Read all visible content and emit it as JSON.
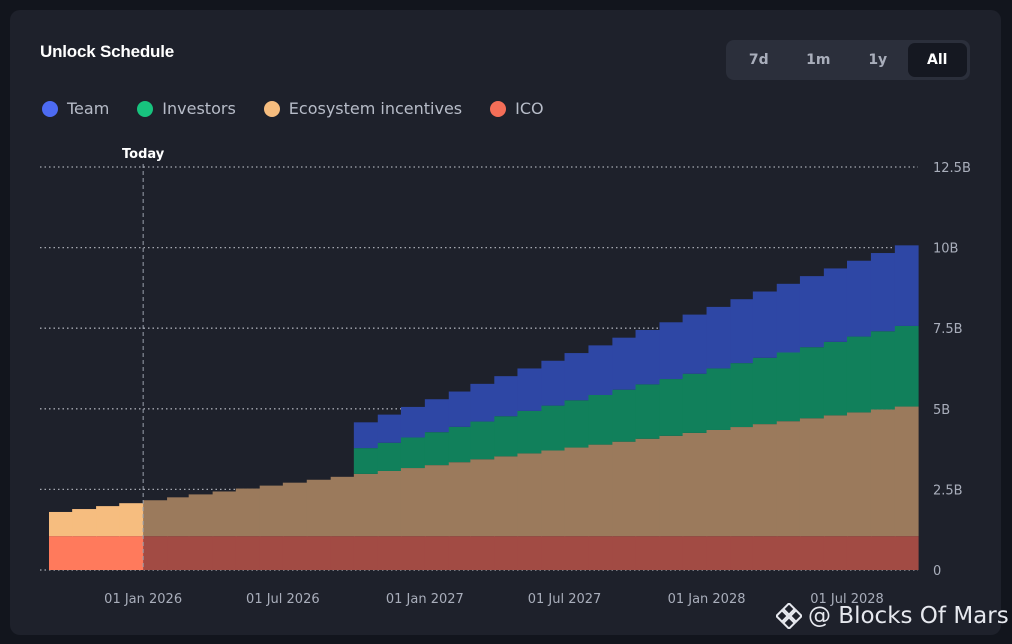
{
  "header": {
    "title": "Unlock Schedule",
    "ranges": [
      "7d",
      "1m",
      "1y",
      "All"
    ],
    "active_range": "All"
  },
  "legend": [
    {
      "label": "Team",
      "color": "#4d6bf2"
    },
    {
      "label": "Investors",
      "color": "#17c37e"
    },
    {
      "label": "Ecosystem incentives",
      "color": "#f6bd7f"
    },
    {
      "label": "ICO",
      "color": "#f46e58"
    }
  ],
  "watermark": "@ Blocks Of Mars",
  "chart_data": {
    "type": "area",
    "stacked": true,
    "step": true,
    "title": "Unlock Schedule",
    "x_start": "2025-09-01",
    "x_end": "2028-10-01",
    "today": "2026-01-01",
    "today_label": "Today",
    "y_range": [
      0,
      12.5
    ],
    "y_unit": "B",
    "y_ticks": [
      {
        "value": 12.5,
        "label": "12.5B"
      },
      {
        "value": 10,
        "label": "10B"
      },
      {
        "value": 7.5,
        "label": "7.5B"
      },
      {
        "value": 5,
        "label": "5B"
      },
      {
        "value": 2.5,
        "label": "2.5B"
      },
      {
        "value": 0,
        "label": "0"
      }
    ],
    "x_ticks": [
      {
        "date": "2026-01-01",
        "label": "01 Jan 2026"
      },
      {
        "date": "2026-07-01",
        "label": "01 Jul 2026"
      },
      {
        "date": "2027-01-01",
        "label": "01 Jan 2027"
      },
      {
        "date": "2027-07-01",
        "label": "01 Jul 2027"
      },
      {
        "date": "2028-01-01",
        "label": "01 Jan 2028"
      },
      {
        "date": "2028-07-01",
        "label": "01 Jul 2028"
      }
    ],
    "series": [
      {
        "name": "ICO",
        "color": "#f46e58",
        "past_color": "#ff7a5c",
        "future_color": "#a24b44",
        "start": "2025-09-01",
        "start_value": 1.05,
        "end_value": 1.05,
        "steps": 37
      },
      {
        "name": "Ecosystem incentives",
        "color": "#f6bd7f",
        "past_color": "#f6bd7f",
        "future_color": "#9b7a5c",
        "start": "2025-09-01",
        "start_value": 0.75,
        "end_value": 4.02,
        "steps": 37
      },
      {
        "name": "Investors",
        "color": "#17c37e",
        "past_color": "#17c37e",
        "future_color": "#11805b",
        "start": "2026-10-01",
        "start_value": 0.8,
        "end_value": 2.5,
        "steps": 24
      },
      {
        "name": "Team",
        "color": "#4d6bf2",
        "past_color": "#4d6bf2",
        "future_color": "#2e47a5",
        "start": "2026-10-01",
        "start_value": 0.8,
        "end_value": 2.5,
        "steps": 24
      }
    ]
  }
}
